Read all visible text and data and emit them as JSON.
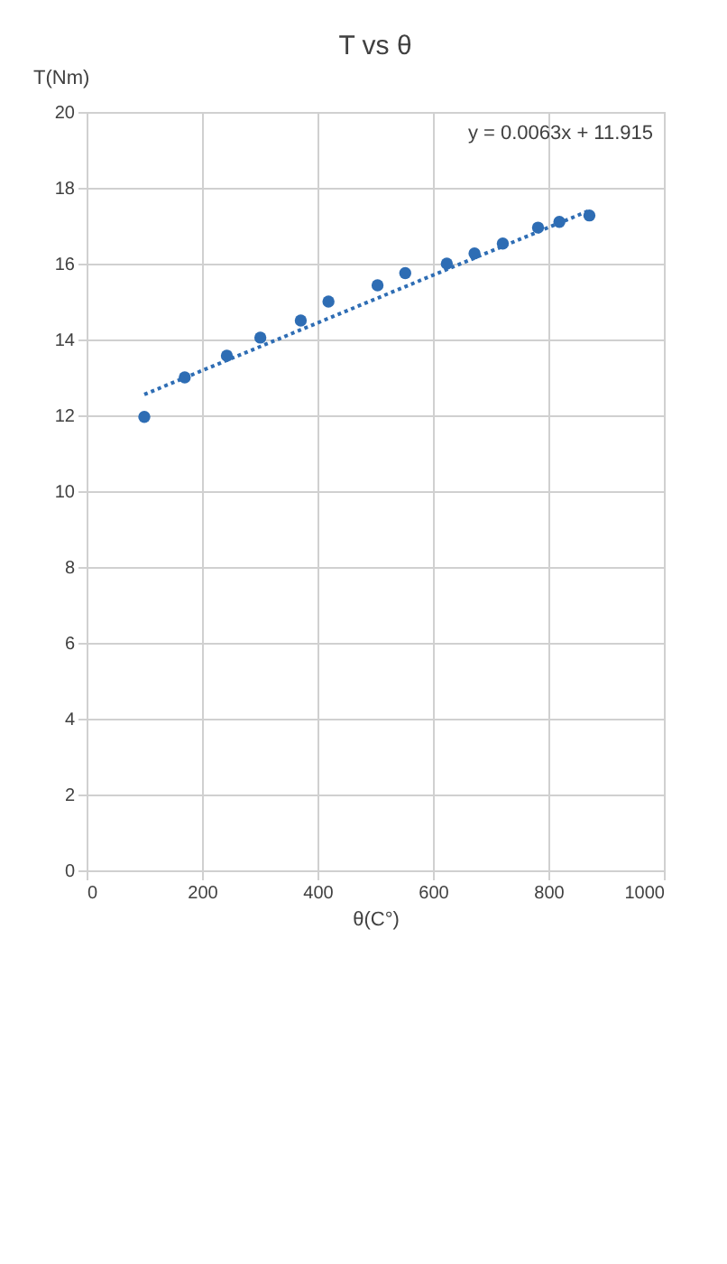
{
  "chart_data": {
    "type": "scatter",
    "title": "T vs θ",
    "xlabel": "θ(C°)",
    "ylabel": "T(Nm)",
    "annotations": [
      "y = 0.0063x + 11.915"
    ],
    "x": [
      100,
      170,
      243,
      301,
      371,
      419,
      504,
      552,
      624,
      672,
      721,
      782,
      819,
      871
    ],
    "series": [
      {
        "color": "#2e6db4",
        "marker": "circle",
        "values": [
          11.96,
          13.0,
          13.57,
          14.05,
          14.5,
          15.0,
          15.43,
          15.75,
          16.0,
          16.27,
          16.53,
          16.95,
          17.1,
          17.27
        ]
      },
      {
        "type": "line",
        "color": "#2e6db4",
        "line_style": "dotted",
        "x": [
          100,
          871
        ],
        "values": [
          12.55,
          17.4
        ]
      }
    ],
    "xlim": [
      0,
      1000
    ],
    "xticks": [
      0,
      200,
      400,
      600,
      800,
      1000
    ],
    "ylim": [
      0,
      20
    ],
    "yticks": [
      0,
      2,
      4,
      6,
      8,
      10,
      12,
      14,
      16,
      18,
      20
    ],
    "grid": true
  }
}
